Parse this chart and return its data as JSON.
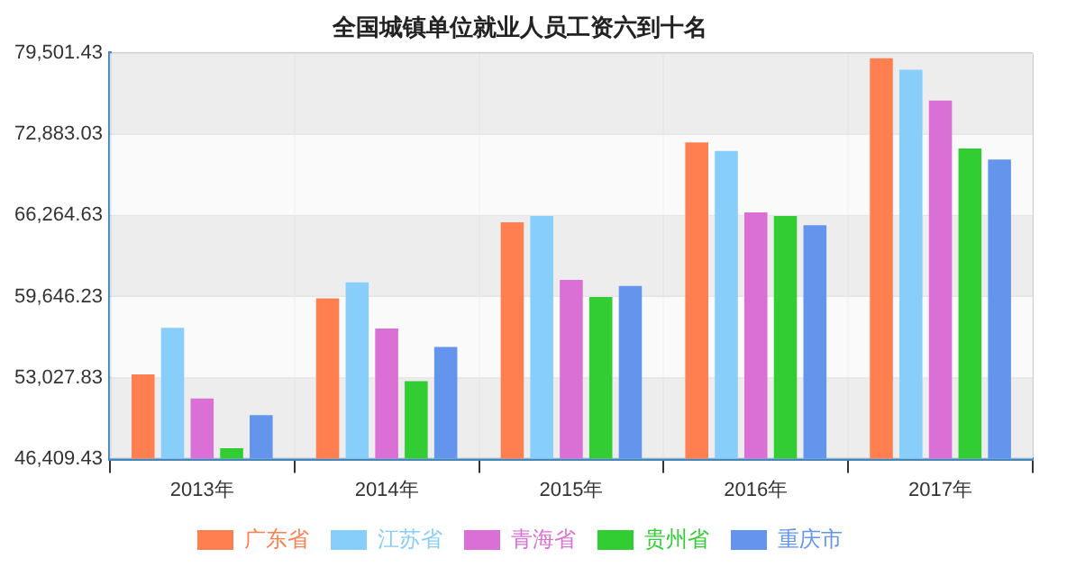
{
  "chart_data": {
    "type": "bar",
    "title": "全国城镇单位就业人员工资六到十名",
    "categories": [
      "2013年",
      "2014年",
      "2015年",
      "2016年",
      "2017年"
    ],
    "series": [
      {
        "name": "广东省",
        "color": "#ff7f50",
        "values": [
          53280,
          59500,
          65710,
          72230,
          79100
        ]
      },
      {
        "name": "江苏省",
        "color": "#87cefa",
        "values": [
          57090,
          60800,
          66210,
          71530,
          78150
        ]
      },
      {
        "name": "青海省",
        "color": "#da70d6",
        "values": [
          51320,
          57040,
          61000,
          66520,
          75640
        ]
      },
      {
        "name": "贵州省",
        "color": "#32cd32",
        "values": [
          47260,
          52730,
          59600,
          66210,
          71730
        ]
      },
      {
        "name": "重庆市",
        "color": "#6495ed",
        "values": [
          49970,
          55530,
          60500,
          65460,
          70830
        ]
      }
    ],
    "ylim": [
      46409.43,
      79501.43
    ],
    "yticks": [
      {
        "value": 46409.43,
        "label": "46,409.43"
      },
      {
        "value": 53027.83,
        "label": "53,027.83"
      },
      {
        "value": 59646.23,
        "label": "59,646.23"
      },
      {
        "value": 66264.63,
        "label": "66,264.63"
      },
      {
        "value": 72883.03,
        "label": "72,883.03"
      },
      {
        "value": 79501.43,
        "label": "79,501.43"
      }
    ],
    "grid": true,
    "legend": "bottom"
  }
}
